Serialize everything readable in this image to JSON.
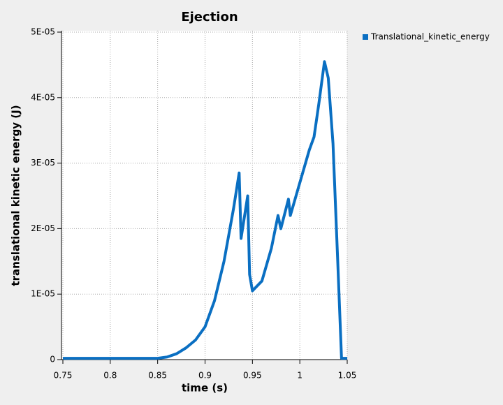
{
  "chart_data": {
    "type": "line",
    "title": "Ejection",
    "x_label": "time (s)",
    "y_label": "translational kinetic energy (J)",
    "x": [
      0.75,
      0.85,
      0.86,
      0.87,
      0.88,
      0.89,
      0.9,
      0.91,
      0.92,
      0.93,
      0.936,
      0.938,
      0.945,
      0.947,
      0.95,
      0.96,
      0.97,
      0.977,
      0.98,
      0.988,
      0.99,
      1.0,
      1.01,
      1.015,
      1.02,
      1.026,
      1.03,
      1.035,
      1.04,
      1.044,
      1.05
    ],
    "series": [
      {
        "name": "Translational_kinetic_energy",
        "color": "#0a6fc2",
        "values": [
          2e-07,
          2e-07,
          4e-07,
          9e-07,
          1.8e-06,
          3e-06,
          5e-06,
          9e-06,
          1.5e-05,
          2.3e-05,
          2.85e-05,
          1.85e-05,
          2.5e-05,
          1.3e-05,
          1.05e-05,
          1.2e-05,
          1.7e-05,
          2.2e-05,
          2e-05,
          2.45e-05,
          2.2e-05,
          2.7e-05,
          3.2e-05,
          3.4e-05,
          3.9e-05,
          4.55e-05,
          4.3e-05,
          3.3e-05,
          1.5e-05,
          2e-07,
          2e-07
        ]
      }
    ],
    "xlim": [
      0.75,
      1.05
    ],
    "xticks": [
      0.75,
      0.8,
      0.85,
      0.9,
      0.95,
      1,
      1.05
    ],
    "ylim": [
      0,
      5e-05
    ],
    "yticks": [
      0,
      {
        "value": 1e-05,
        "label": "1E-05"
      },
      {
        "value": 2e-05,
        "label": "2E-05"
      },
      {
        "value": 3e-05,
        "label": "3E-05"
      },
      {
        "value": 4e-05,
        "label": "4E-05"
      },
      {
        "value": 5e-05,
        "label": "5E-05"
      }
    ],
    "grid": true,
    "legend": "right"
  }
}
